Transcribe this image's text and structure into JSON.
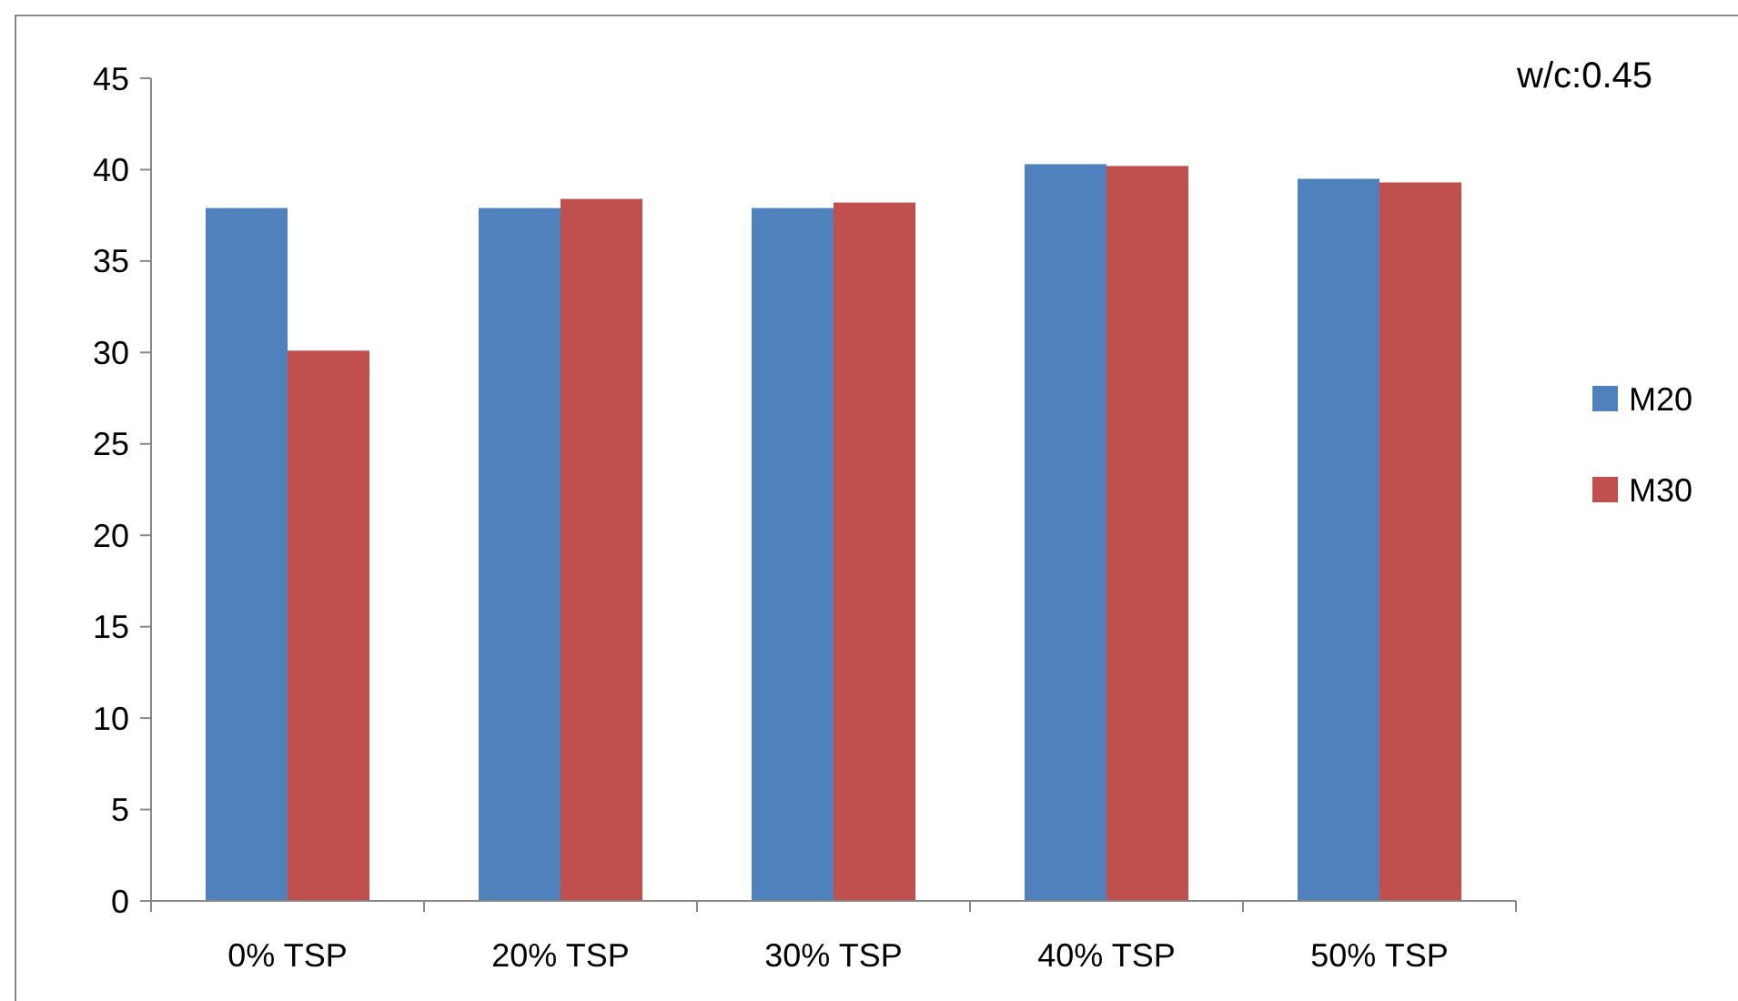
{
  "chart_data": {
    "type": "bar",
    "categories": [
      "0% TSP",
      "20% TSP",
      "30% TSP",
      "40% TSP",
      "50% TSP"
    ],
    "series": [
      {
        "name": "M20",
        "color": "#4f81bd",
        "values": [
          37.9,
          37.9,
          37.9,
          40.3,
          39.5
        ]
      },
      {
        "name": "M30",
        "color": "#c0504d",
        "values": [
          30.1,
          38.4,
          38.2,
          40.2,
          39.3
        ]
      }
    ],
    "ylim": [
      0,
      45
    ],
    "yticks": [
      0,
      5,
      10,
      15,
      20,
      25,
      30,
      35,
      40,
      45
    ],
    "grid": false,
    "legend": "right",
    "annotations": [
      "w/c:0.45"
    ]
  }
}
